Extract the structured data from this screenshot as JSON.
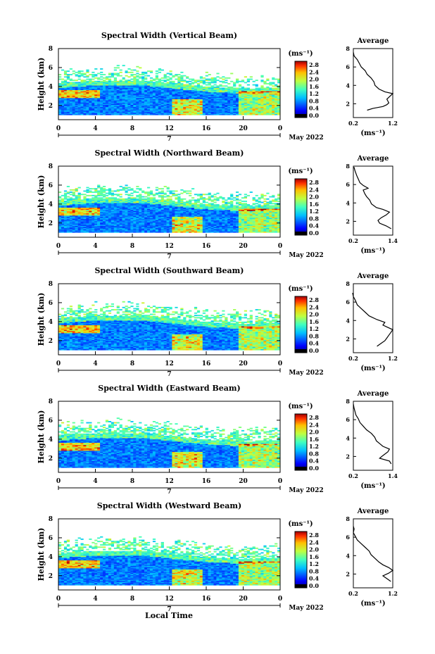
{
  "figure": {
    "xlabel_bottom": "Local Time"
  },
  "chart_data": [
    {
      "type": "heatmap",
      "title": "Spectral Width (Vertical Beam)",
      "ylabel": "Height (km)",
      "x_ticks": [
        "0",
        "4",
        "8",
        "12",
        "16",
        "20",
        "0"
      ],
      "y_ticks": [
        "2",
        "4",
        "6",
        "8"
      ],
      "ylim": [
        0.5,
        8
      ],
      "date_day": "7",
      "date_label": "May 2022",
      "colorbar": {
        "unit": "(ms⁻¹)",
        "ticks": [
          "2.8",
          "2.4",
          "2.0",
          "1.6",
          "1.2",
          "0.8",
          "0.4",
          "0.0"
        ]
      },
      "average": {
        "title": "Average",
        "xlabel": "(ms⁻¹)",
        "x_ticks": [
          "0.2",
          "1.2"
        ],
        "xlim": [
          0.2,
          1.2
        ],
        "ylim": [
          0.5,
          8
        ],
        "y_ticks": [
          "2",
          "4",
          "6",
          "8"
        ],
        "profile": [
          [
            0.55,
            1.3
          ],
          [
            0.7,
            1.5
          ],
          [
            0.95,
            1.7
          ],
          [
            1.05,
            1.9
          ],
          [
            1.1,
            2.1
          ],
          [
            1.05,
            2.5
          ],
          [
            1.15,
            2.9
          ],
          [
            1.2,
            3.1
          ],
          [
            1.0,
            3.3
          ],
          [
            0.85,
            3.6
          ],
          [
            0.75,
            4.0
          ],
          [
            0.72,
            4.4
          ],
          [
            0.65,
            4.8
          ],
          [
            0.55,
            5.2
          ],
          [
            0.5,
            5.6
          ],
          [
            0.4,
            6.0
          ],
          [
            0.35,
            6.4
          ],
          [
            0.3,
            6.8
          ],
          [
            0.22,
            7.2
          ],
          [
            0.2,
            7.6
          ]
        ]
      }
    },
    {
      "type": "heatmap",
      "title": "Spectral Width (Northward Beam)",
      "ylabel": "Height (km)",
      "x_ticks": [
        "0",
        "4",
        "8",
        "12",
        "16",
        "20",
        "0"
      ],
      "y_ticks": [
        "2",
        "4",
        "6",
        "8"
      ],
      "ylim": [
        0.5,
        8
      ],
      "date_day": "7",
      "date_label": "May 2022",
      "colorbar": {
        "unit": "(ms⁻¹)",
        "ticks": [
          "2.8",
          "2.4",
          "2.0",
          "1.6",
          "1.2",
          "0.8",
          "0.4",
          "0.0"
        ]
      },
      "average": {
        "title": "Average",
        "xlabel": "(ms⁻¹)",
        "x_ticks": [
          "0.2",
          "1.4"
        ],
        "xlim": [
          0.2,
          1.4
        ],
        "ylim": [
          0.5,
          8
        ],
        "y_ticks": [
          "2",
          "4",
          "6",
          "8"
        ],
        "profile": [
          [
            1.35,
            1.2
          ],
          [
            1.2,
            1.5
          ],
          [
            1.0,
            1.8
          ],
          [
            0.95,
            2.1
          ],
          [
            1.05,
            2.4
          ],
          [
            1.2,
            2.7
          ],
          [
            1.3,
            3.0
          ],
          [
            1.1,
            3.3
          ],
          [
            0.9,
            3.5
          ],
          [
            0.75,
            3.9
          ],
          [
            0.7,
            4.3
          ],
          [
            0.6,
            4.7
          ],
          [
            0.55,
            5.0
          ],
          [
            0.5,
            5.4
          ],
          [
            0.65,
            5.6
          ],
          [
            0.5,
            5.9
          ],
          [
            0.4,
            6.2
          ],
          [
            0.35,
            6.6
          ],
          [
            0.3,
            7.0
          ],
          [
            0.25,
            7.5
          ],
          [
            0.22,
            7.9
          ]
        ]
      }
    },
    {
      "type": "heatmap",
      "title": "Spectral Width (Southward Beam)",
      "ylabel": "Height (km)",
      "x_ticks": [
        "0",
        "4",
        "8",
        "12",
        "16",
        "20",
        "0"
      ],
      "y_ticks": [
        "2",
        "4",
        "6",
        "8"
      ],
      "ylim": [
        0.5,
        8
      ],
      "date_day": "7",
      "date_label": "May 2022",
      "colorbar": {
        "unit": "(ms⁻¹)",
        "ticks": [
          "2.8",
          "2.4",
          "2.0",
          "1.6",
          "1.2",
          "0.8",
          "0.4",
          "0.0"
        ]
      },
      "average": {
        "title": "Average",
        "xlabel": "(ms⁻¹)",
        "x_ticks": [
          "0.2",
          "1.2"
        ],
        "xlim": [
          0.2,
          1.2
        ],
        "ylim": [
          0.5,
          8
        ],
        "y_ticks": [
          "2",
          "4",
          "6",
          "8"
        ],
        "profile": [
          [
            0.8,
            1.2
          ],
          [
            0.9,
            1.5
          ],
          [
            1.0,
            1.8
          ],
          [
            1.05,
            2.1
          ],
          [
            1.1,
            2.4
          ],
          [
            1.15,
            2.7
          ],
          [
            1.2,
            3.0
          ],
          [
            1.05,
            3.3
          ],
          [
            0.95,
            3.5
          ],
          [
            1.0,
            3.8
          ],
          [
            0.8,
            4.1
          ],
          [
            0.6,
            4.5
          ],
          [
            0.5,
            4.9
          ],
          [
            0.4,
            5.3
          ],
          [
            0.3,
            5.7
          ],
          [
            0.25,
            6.2
          ],
          [
            0.2,
            6.6
          ],
          [
            0.18,
            7.0
          ]
        ]
      }
    },
    {
      "type": "heatmap",
      "title": "Spectral Width (Eastward Beam)",
      "ylabel": "Height (km)",
      "x_ticks": [
        "0",
        "4",
        "8",
        "12",
        "16",
        "20",
        "0"
      ],
      "y_ticks": [
        "2",
        "4",
        "6",
        "8"
      ],
      "ylim": [
        0.5,
        8
      ],
      "date_day": "7",
      "date_label": "May 2022",
      "colorbar": {
        "unit": "(ms⁻¹)",
        "ticks": [
          "2.8",
          "2.4",
          "2.0",
          "1.6",
          "1.2",
          "0.8",
          "0.4",
          "0.0"
        ]
      },
      "average": {
        "title": "Average",
        "xlabel": "(ms⁻¹)",
        "x_ticks": [
          "0.2",
          "1.4"
        ],
        "xlim": [
          0.2,
          1.4
        ],
        "ylim": [
          0.5,
          8
        ],
        "y_ticks": [
          "2",
          "4",
          "6",
          "8"
        ],
        "profile": [
          [
            1.35,
            1.2
          ],
          [
            1.3,
            1.5
          ],
          [
            1.0,
            1.8
          ],
          [
            1.1,
            2.1
          ],
          [
            1.25,
            2.5
          ],
          [
            1.3,
            2.8
          ],
          [
            1.1,
            3.1
          ],
          [
            1.0,
            3.4
          ],
          [
            0.9,
            3.7
          ],
          [
            0.85,
            4.1
          ],
          [
            0.75,
            4.5
          ],
          [
            0.6,
            4.9
          ],
          [
            0.5,
            5.3
          ],
          [
            0.4,
            5.7
          ],
          [
            0.35,
            6.1
          ],
          [
            0.28,
            6.5
          ],
          [
            0.25,
            6.9
          ],
          [
            0.22,
            7.3
          ],
          [
            0.2,
            7.7
          ]
        ]
      }
    },
    {
      "type": "heatmap",
      "title": "Spectral Width (Westward Beam)",
      "ylabel": "Height (km)",
      "x_ticks": [
        "0",
        "4",
        "8",
        "12",
        "16",
        "20",
        "0"
      ],
      "y_ticks": [
        "2",
        "4",
        "6",
        "8"
      ],
      "ylim": [
        0.5,
        8
      ],
      "date_day": "7",
      "date_label": "May 2022",
      "colorbar": {
        "unit": "(ms⁻¹)",
        "ticks": [
          "2.8",
          "2.4",
          "2.0",
          "1.6",
          "1.2",
          "0.8",
          "0.4",
          "0.0"
        ]
      },
      "average": {
        "title": "Average",
        "xlabel": "(ms⁻¹)",
        "x_ticks": [
          "0.2",
          "1.2"
        ],
        "xlim": [
          0.2,
          1.2
        ],
        "ylim": [
          0.5,
          8
        ],
        "y_ticks": [
          "2",
          "4",
          "6",
          "8"
        ],
        "profile": [
          [
            1.15,
            1.2
          ],
          [
            1.05,
            1.5
          ],
          [
            0.95,
            1.8
          ],
          [
            1.1,
            2.1
          ],
          [
            1.2,
            2.4
          ],
          [
            1.1,
            2.7
          ],
          [
            0.95,
            3.0
          ],
          [
            0.85,
            3.3
          ],
          [
            0.75,
            3.7
          ],
          [
            0.65,
            4.1
          ],
          [
            0.6,
            4.5
          ],
          [
            0.5,
            4.9
          ],
          [
            0.4,
            5.3
          ],
          [
            0.3,
            5.7
          ],
          [
            0.25,
            6.1
          ],
          [
            0.2,
            6.5
          ],
          [
            0.22,
            6.9
          ],
          [
            0.2,
            7.2
          ]
        ]
      }
    }
  ]
}
